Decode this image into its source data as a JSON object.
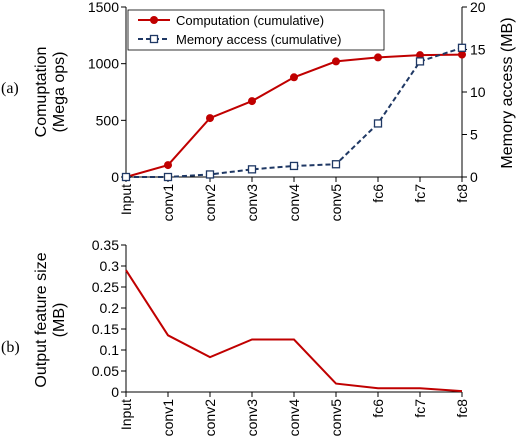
{
  "chart_data": [
    {
      "type": "line",
      "panel_label": "(a)",
      "categories": [
        "Input",
        "conv1",
        "conv2",
        "conv3",
        "conv4",
        "conv5",
        "fc6",
        "fc7",
        "fc8"
      ],
      "series": [
        {
          "name": "Computation (cumulative)",
          "axis": "left",
          "color": "#c00000",
          "marker": "circle",
          "dash": "solid",
          "values": [
            0,
            105,
            520,
            670,
            880,
            1020,
            1055,
            1075,
            1080
          ]
        },
        {
          "name": "Memory access (cumulative)",
          "axis": "right",
          "color": "#1f3864",
          "marker": "square-open",
          "dash": "dashed",
          "values": [
            0,
            0,
            0.3,
            0.9,
            1.3,
            1.5,
            6.3,
            13.6,
            15.2
          ]
        }
      ],
      "ylabel_left": [
        "Comuptation",
        "(Mega ops)"
      ],
      "ylim_left": [
        0,
        1500
      ],
      "yticks_left": [
        "0",
        "500",
        "1000",
        "1500"
      ],
      "ylabel_right": "Memory access (MB)",
      "ylim_right": [
        0,
        20
      ],
      "yticks_right": [
        "0",
        "5",
        "10",
        "15",
        "20"
      ],
      "legend": "top-left",
      "grid": false
    },
    {
      "type": "line",
      "panel_label": "(b)",
      "categories": [
        "Input",
        "conv1",
        "conv2",
        "conv3",
        "conv4",
        "conv5",
        "fc6",
        "fc7",
        "fc8"
      ],
      "series": [
        {
          "color": "#c00000",
          "marker": "none",
          "dash": "solid",
          "values": [
            0.29,
            0.135,
            0.083,
            0.125,
            0.125,
            0.02,
            0.009,
            0.009,
            0.002
          ]
        }
      ],
      "ylabel": [
        "Output feature size",
        "(MB)"
      ],
      "ylim": [
        0,
        0.35
      ],
      "yticks": [
        "0",
        "0.05",
        "0.1",
        "0.15",
        "0.2",
        "0.25",
        "0.3",
        "0.35"
      ],
      "grid": false
    }
  ]
}
